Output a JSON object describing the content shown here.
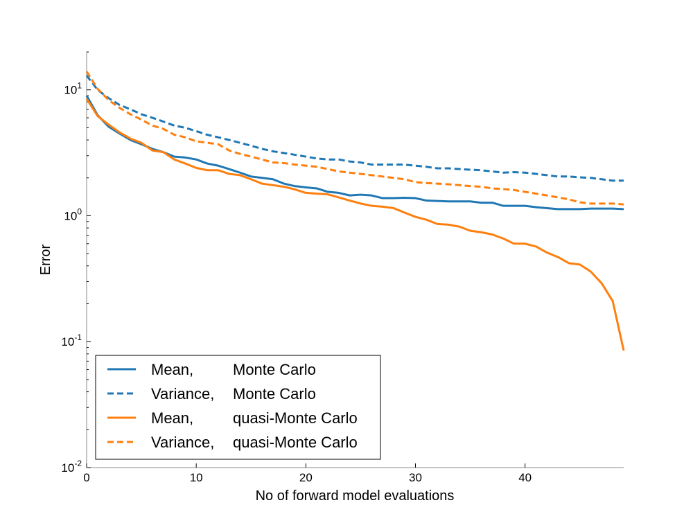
{
  "chart_data": {
    "type": "line",
    "title": "",
    "xlabel": "No of forward model evaluations",
    "ylabel": "Error",
    "xlim": [
      0,
      49
    ],
    "ylim": [
      0.01,
      20
    ],
    "yscale": "log",
    "grid": false,
    "legend_position": "lower-left",
    "x_ticks": [
      0,
      10,
      20,
      30,
      40
    ],
    "y_ticks": [
      {
        "value": 0.01,
        "base": "10",
        "exp": "-2"
      },
      {
        "value": 0.1,
        "base": "10",
        "exp": "-1"
      },
      {
        "value": 1,
        "base": "10",
        "exp": "0"
      },
      {
        "value": 10,
        "base": "10",
        "exp": "1"
      }
    ],
    "x": [
      0,
      1,
      2,
      3,
      4,
      5,
      6,
      7,
      8,
      9,
      10,
      11,
      12,
      13,
      14,
      15,
      16,
      17,
      18,
      19,
      20,
      21,
      22,
      23,
      24,
      25,
      26,
      27,
      28,
      29,
      30,
      31,
      32,
      33,
      34,
      35,
      36,
      37,
      38,
      39,
      40,
      41,
      42,
      43,
      44,
      45,
      46,
      47,
      48,
      49
    ],
    "series": [
      {
        "name": "Mean,",
        "method": "Monte Carlo",
        "color": "#1f77b4",
        "dash": "solid",
        "values": [
          9.0,
          6.3,
          5.1,
          4.5,
          4.0,
          3.7,
          3.4,
          3.2,
          2.95,
          2.9,
          2.8,
          2.6,
          2.5,
          2.35,
          2.2,
          2.05,
          2.0,
          1.95,
          1.8,
          1.72,
          1.68,
          1.65,
          1.55,
          1.52,
          1.45,
          1.47,
          1.45,
          1.38,
          1.38,
          1.39,
          1.38,
          1.32,
          1.31,
          1.3,
          1.3,
          1.3,
          1.27,
          1.27,
          1.2,
          1.2,
          1.2,
          1.17,
          1.15,
          1.13,
          1.13,
          1.13,
          1.14,
          1.14,
          1.14,
          1.13
        ]
      },
      {
        "name": "Variance,",
        "method": "Monte Carlo",
        "color": "#1f77b4",
        "dash": "dashed",
        "values": [
          13.0,
          10.0,
          8.6,
          7.6,
          7.0,
          6.4,
          6.0,
          5.6,
          5.2,
          5.0,
          4.7,
          4.4,
          4.2,
          4.0,
          3.8,
          3.6,
          3.4,
          3.25,
          3.15,
          3.05,
          2.95,
          2.85,
          2.8,
          2.8,
          2.7,
          2.65,
          2.55,
          2.55,
          2.55,
          2.55,
          2.5,
          2.45,
          2.38,
          2.38,
          2.35,
          2.32,
          2.3,
          2.25,
          2.2,
          2.22,
          2.2,
          2.15,
          2.1,
          2.05,
          2.05,
          2.02,
          2.0,
          1.95,
          1.9,
          1.9
        ]
      },
      {
        "name": "Mean,",
        "method": "quasi-Monte Carlo",
        "color": "#ff7f0e",
        "dash": "solid",
        "values": [
          8.5,
          6.2,
          5.3,
          4.6,
          4.1,
          3.8,
          3.3,
          3.2,
          2.8,
          2.6,
          2.4,
          2.3,
          2.3,
          2.15,
          2.1,
          1.95,
          1.8,
          1.75,
          1.7,
          1.62,
          1.52,
          1.5,
          1.48,
          1.4,
          1.32,
          1.25,
          1.2,
          1.18,
          1.15,
          1.06,
          0.98,
          0.93,
          0.86,
          0.85,
          0.82,
          0.76,
          0.74,
          0.71,
          0.66,
          0.6,
          0.6,
          0.57,
          0.51,
          0.47,
          0.42,
          0.41,
          0.36,
          0.29,
          0.21,
          0.085
        ]
      },
      {
        "name": "Variance,",
        "method": "quasi-Monte Carlo",
        "color": "#ff7f0e",
        "dash": "dashed",
        "values": [
          14.0,
          10.2,
          8.3,
          7.2,
          6.4,
          5.8,
          5.2,
          4.9,
          4.4,
          4.2,
          3.9,
          3.8,
          3.7,
          3.3,
          3.1,
          2.95,
          2.8,
          2.65,
          2.62,
          2.55,
          2.5,
          2.45,
          2.35,
          2.25,
          2.2,
          2.15,
          2.1,
          2.05,
          2.0,
          1.95,
          1.85,
          1.82,
          1.8,
          1.78,
          1.75,
          1.72,
          1.7,
          1.65,
          1.63,
          1.6,
          1.55,
          1.5,
          1.45,
          1.4,
          1.35,
          1.28,
          1.25,
          1.25,
          1.25,
          1.23
        ]
      }
    ]
  }
}
